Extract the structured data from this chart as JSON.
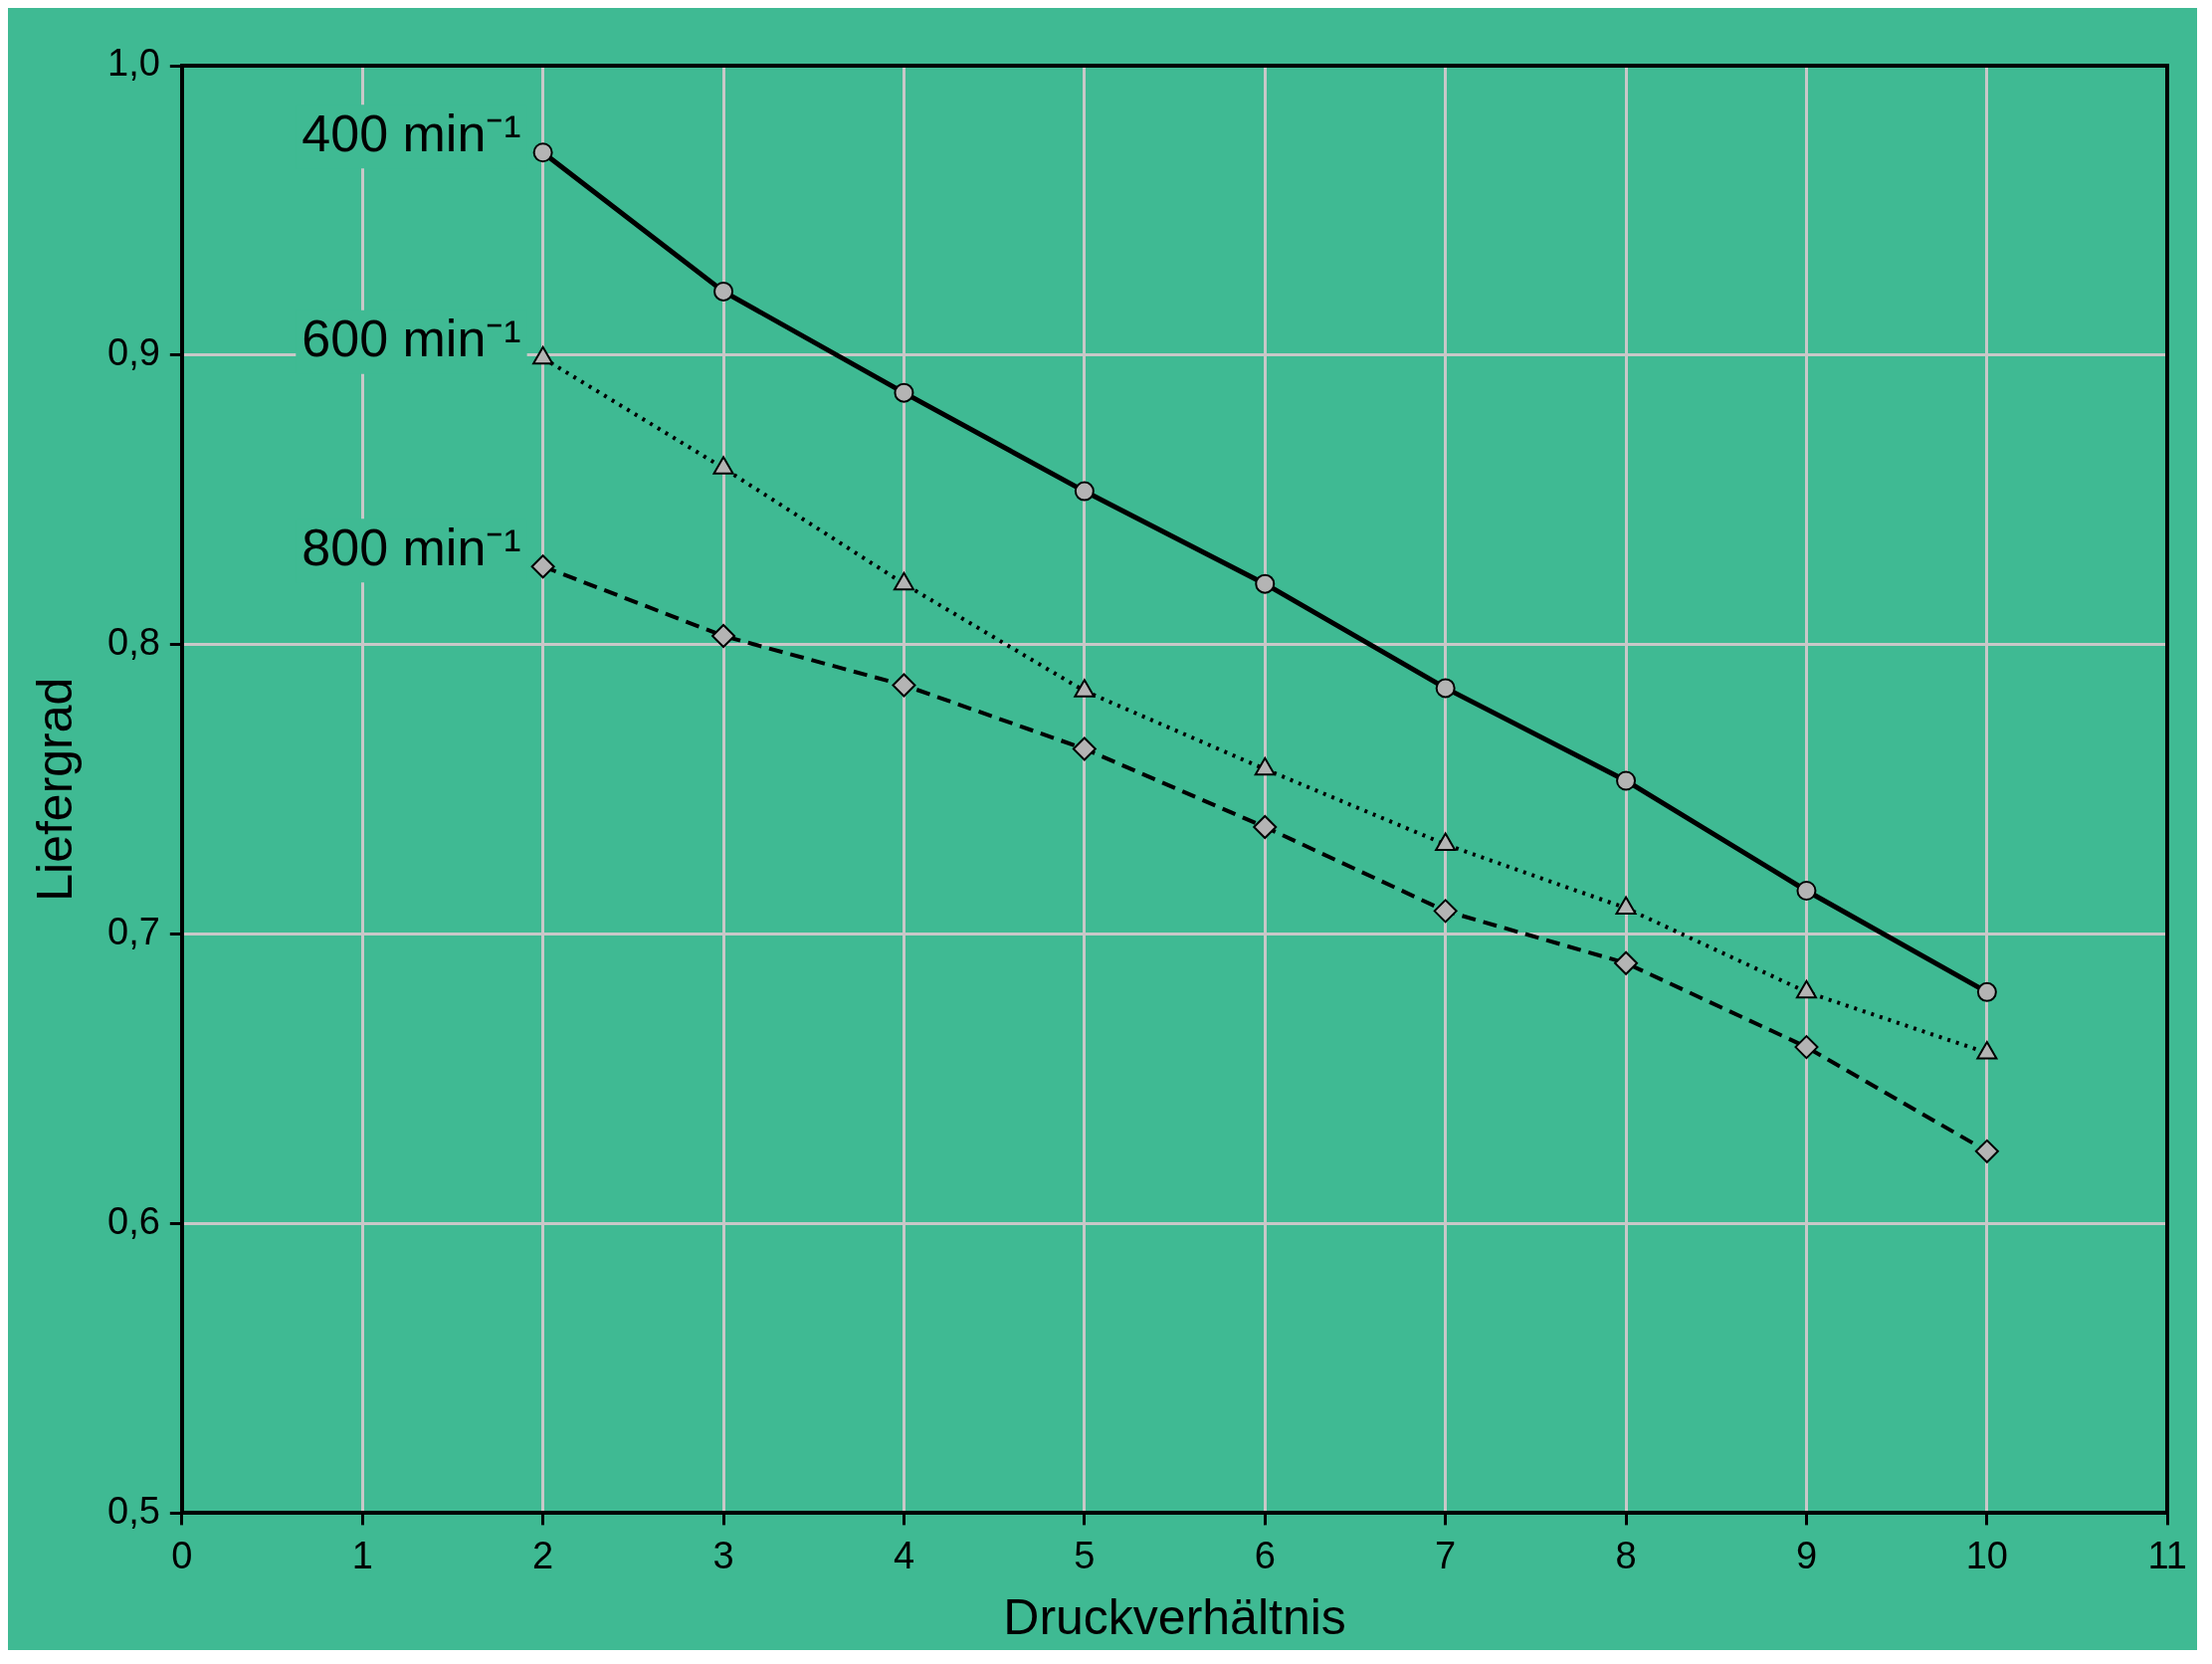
{
  "chart_data": {
    "type": "line",
    "xlabel": "Druckverhältnis",
    "ylabel": "Liefergrad",
    "x": [
      2,
      3,
      4,
      5,
      6,
      7,
      8,
      9,
      10
    ],
    "series": [
      {
        "name": "400 min⁻¹",
        "color": "#000000",
        "marker": "circle",
        "line_style": "solid",
        "values": [
          0.97,
          0.922,
          0.887,
          0.853,
          0.821,
          0.785,
          0.753,
          0.715,
          0.68
        ]
      },
      {
        "name": "600 min⁻¹",
        "color": "#000000",
        "marker": "triangle",
        "line_style": "dotted",
        "values": [
          0.899,
          0.861,
          0.821,
          0.784,
          0.757,
          0.731,
          0.709,
          0.68,
          0.659
        ]
      },
      {
        "name": "800 min⁻¹",
        "color": "#000000",
        "marker": "diamond",
        "line_style": "dashed",
        "values": [
          0.827,
          0.803,
          0.786,
          0.764,
          0.737,
          0.708,
          0.69,
          0.661,
          0.625
        ]
      }
    ],
    "xlim": [
      0,
      11
    ],
    "xticks": [
      0,
      1,
      2,
      3,
      4,
      5,
      6,
      7,
      8,
      9,
      10,
      11
    ],
    "ylim": [
      0.5,
      1.0
    ],
    "yticks": [
      {
        "value": 0.5,
        "label": "0,5"
      },
      {
        "value": 0.6,
        "label": "0,6"
      },
      {
        "value": 0.7,
        "label": "0,7"
      },
      {
        "value": 0.8,
        "label": "0,8"
      },
      {
        "value": 0.9,
        "label": "0,9"
      },
      {
        "value": 1.0,
        "label": "1,0"
      }
    ],
    "grid": true,
    "legend": false
  }
}
